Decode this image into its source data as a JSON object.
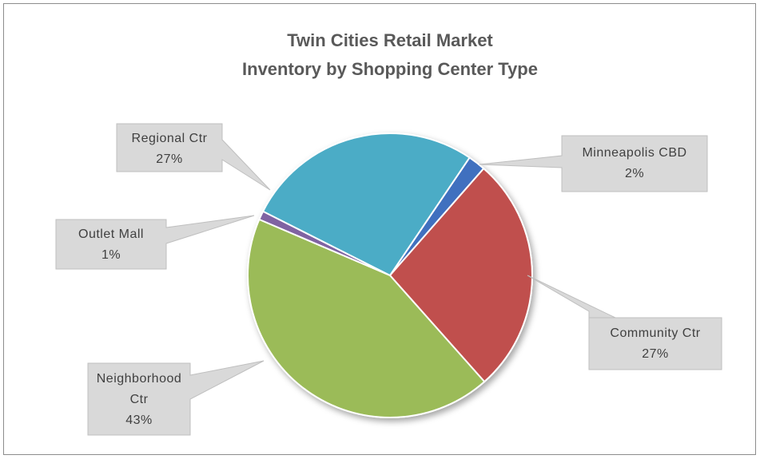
{
  "chart_data": {
    "type": "pie",
    "title": [
      "Twin Cities Retail Market",
      "Inventory by Shopping Center Type"
    ],
    "categories": [
      "Minneapolis CBD",
      "Community Ctr",
      "Neighborhood Ctr",
      "Outlet Mall",
      "Regional Ctr"
    ],
    "values": [
      2,
      27,
      43,
      1,
      27
    ],
    "value_labels": [
      "2%",
      "27%",
      "43%",
      "1%",
      "27%"
    ],
    "colors": [
      "#3f6fbf",
      "#c0504d",
      "#9bbb59",
      "#8064a2",
      "#4bacc6"
    ]
  }
}
